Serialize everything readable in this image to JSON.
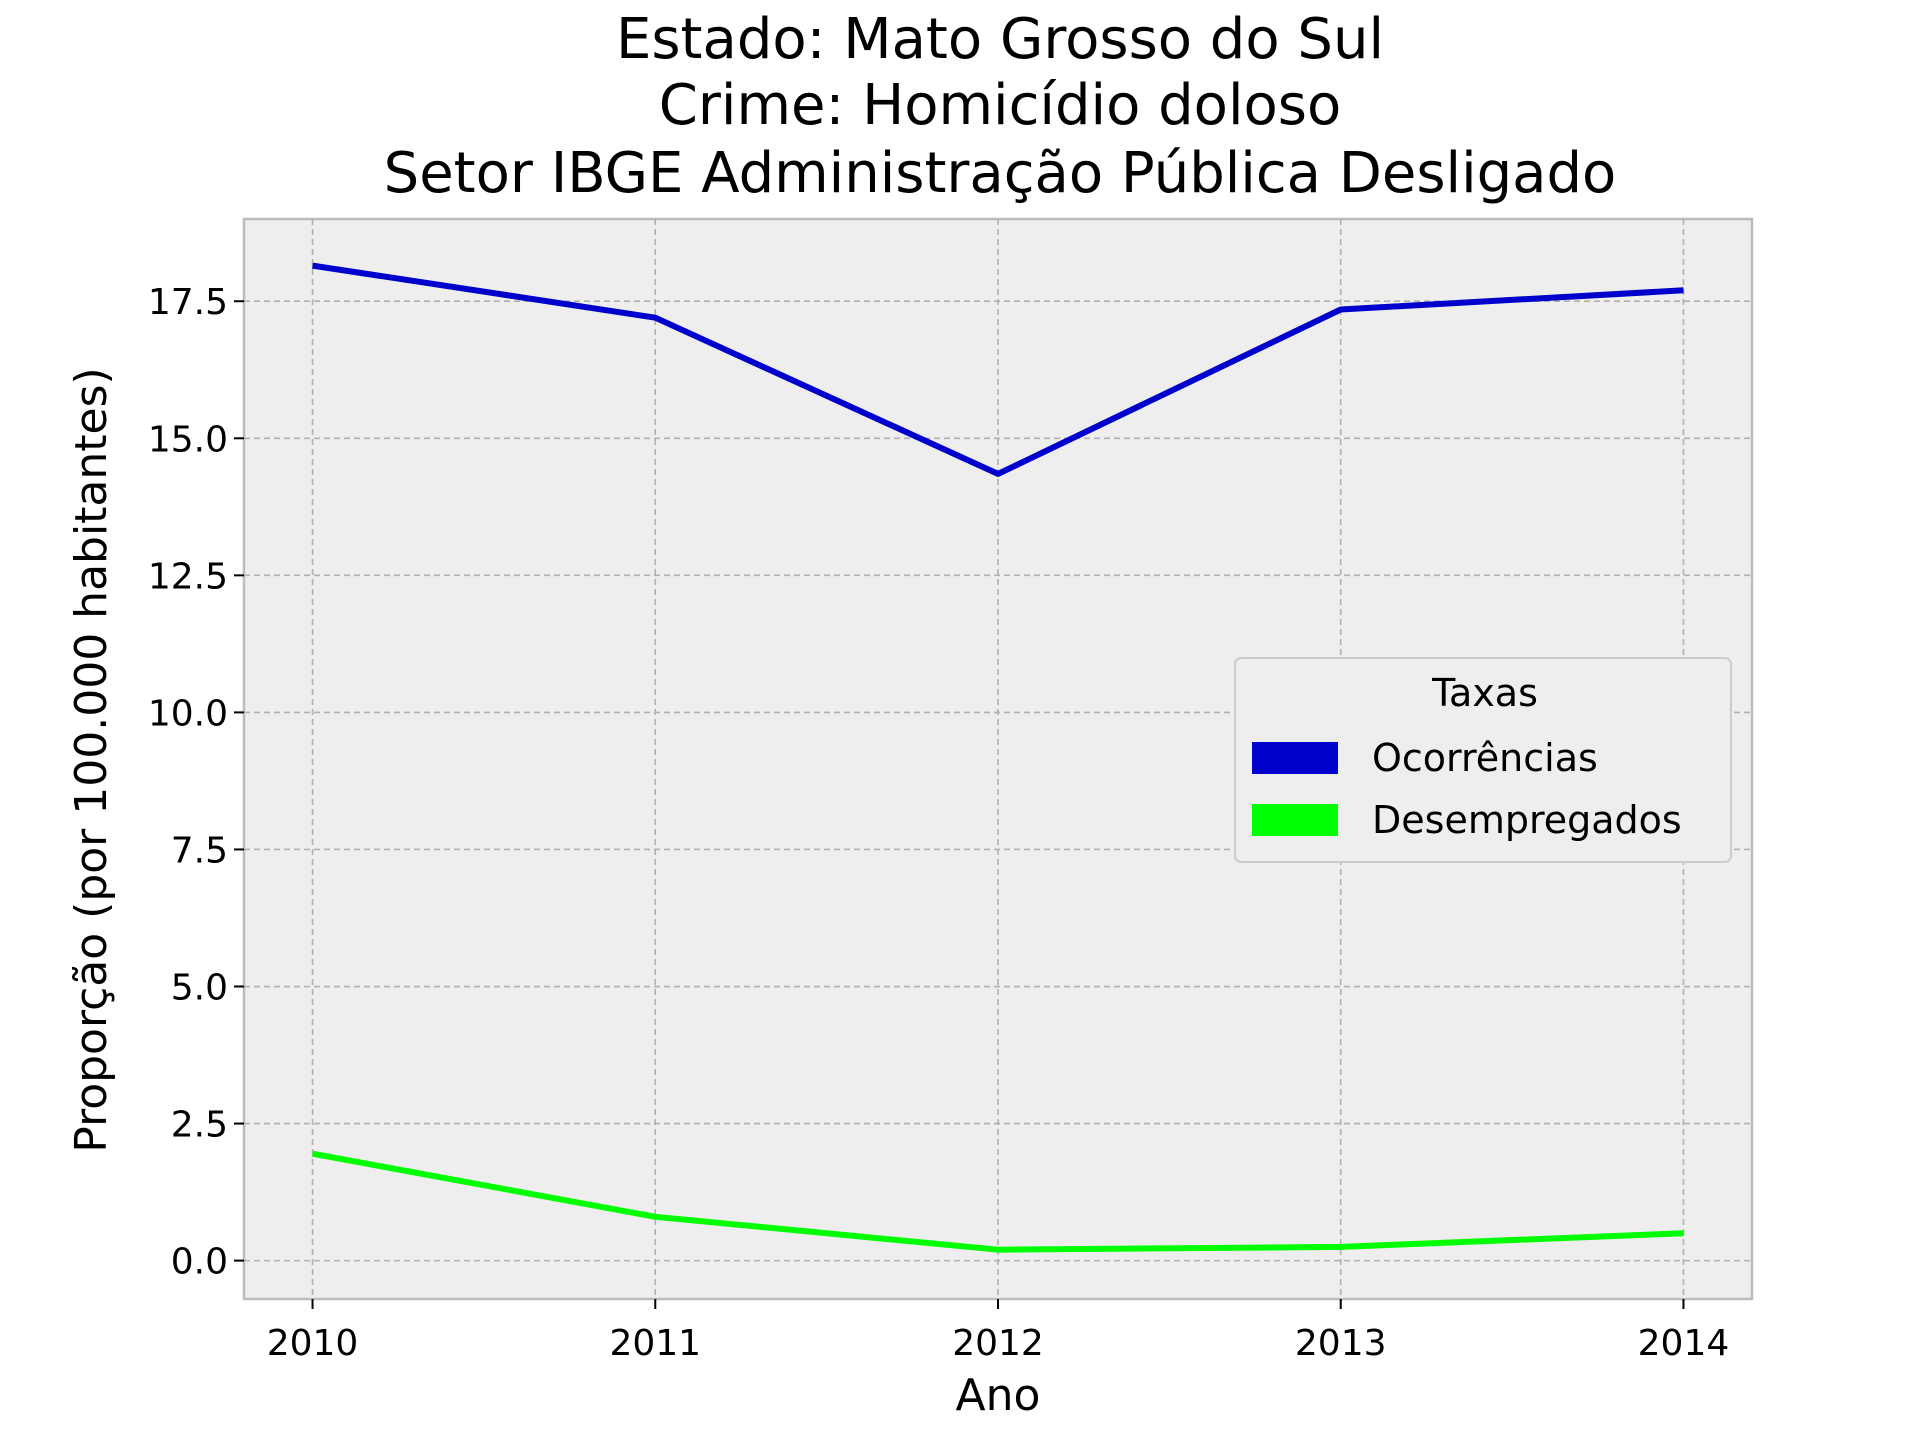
{
  "chart_data": {
    "type": "line",
    "title_lines": [
      "Estado: Mato Grosso do Sul",
      "Crime: Homicídio doloso",
      "Setor IBGE  Administração Pública   Desligado"
    ],
    "xlabel": "Ano",
    "ylabel": "Proporção (por 100.000 habitantes)",
    "x": [
      2010,
      2011,
      2012,
      2013,
      2014
    ],
    "x_tick_labels": [
      "2010",
      "2011",
      "2012",
      "2013",
      "2014"
    ],
    "y_ticks": [
      0.0,
      2.5,
      5.0,
      7.5,
      10.0,
      12.5,
      15.0,
      17.5
    ],
    "y_tick_labels": [
      "0.0",
      "2.5",
      "5.0",
      "7.5",
      "10.0",
      "12.5",
      "15.0",
      "17.5"
    ],
    "xlim": [
      2009.8,
      2014.2
    ],
    "ylim": [
      -0.7,
      19.0
    ],
    "grid": true,
    "legend": {
      "title": "Taxas",
      "placement": "center-right"
    },
    "series": [
      {
        "name": "Ocorrências",
        "color": "#0000cc",
        "values": [
          18.15,
          17.2,
          14.35,
          17.35,
          17.7
        ]
      },
      {
        "name": "Desempregados",
        "color": "#00ff00",
        "values": [
          1.95,
          0.8,
          0.2,
          0.25,
          0.5
        ]
      }
    ]
  }
}
